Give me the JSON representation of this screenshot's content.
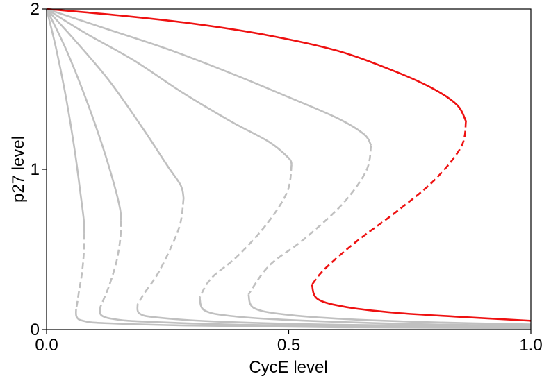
{
  "chart_data": {
    "type": "line",
    "title": "",
    "xlabel": "CycE level",
    "ylabel": "p27 level",
    "xlim": [
      0,
      1
    ],
    "ylim": [
      0,
      2
    ],
    "xticks": [
      {
        "value": 0,
        "label": "0.0"
      },
      {
        "value": 0.5,
        "label": "0.5"
      },
      {
        "value": 1,
        "label": "1.0"
      }
    ],
    "yticks": [
      {
        "value": 0,
        "label": "0"
      },
      {
        "value": 1,
        "label": "1"
      },
      {
        "value": 2,
        "label": "2"
      }
    ],
    "grid": false,
    "legend": "none",
    "colors": {
      "gray": "#c0c0c0",
      "red": "#ee1111"
    },
    "series": [
      {
        "color": "gray",
        "segments": [
          {
            "style": "solid",
            "points": [
              [
                0.0,
                2.0
              ],
              [
                0.02,
                1.75
              ],
              [
                0.04,
                1.45
              ],
              [
                0.058,
                1.12
              ],
              [
                0.07,
                0.85
              ],
              [
                0.077,
                0.68
              ],
              [
                0.078,
                0.6
              ]
            ]
          },
          {
            "style": "dashed",
            "points": [
              [
                0.078,
                0.6
              ],
              [
                0.077,
                0.48
              ],
              [
                0.073,
                0.35
              ],
              [
                0.067,
                0.24
              ],
              [
                0.063,
                0.16
              ],
              [
                0.061,
                0.13
              ]
            ]
          },
          {
            "style": "solid",
            "points": [
              [
                0.061,
                0.13
              ],
              [
                0.062,
                0.08
              ],
              [
                0.075,
                0.055
              ],
              [
                0.12,
                0.04
              ],
              [
                0.3,
                0.025
              ],
              [
                0.6,
                0.014
              ],
              [
                1.0,
                0.009
              ]
            ]
          }
        ]
      },
      {
        "color": "gray",
        "segments": [
          {
            "style": "solid",
            "points": [
              [
                0.0,
                2.0
              ],
              [
                0.04,
                1.75
              ],
              [
                0.08,
                1.45
              ],
              [
                0.115,
                1.15
              ],
              [
                0.14,
                0.9
              ],
              [
                0.152,
                0.75
              ],
              [
                0.154,
                0.68
              ]
            ]
          },
          {
            "style": "dashed",
            "points": [
              [
                0.154,
                0.68
              ],
              [
                0.152,
                0.56
              ],
              [
                0.144,
                0.42
              ],
              [
                0.13,
                0.28
              ],
              [
                0.118,
                0.19
              ],
              [
                0.111,
                0.14
              ]
            ]
          },
          {
            "style": "solid",
            "points": [
              [
                0.111,
                0.14
              ],
              [
                0.113,
                0.09
              ],
              [
                0.14,
                0.065
              ],
              [
                0.2,
                0.05
              ],
              [
                0.4,
                0.03
              ],
              [
                0.7,
                0.02
              ],
              [
                1.0,
                0.014
              ]
            ]
          }
        ]
      },
      {
        "color": "gray",
        "segments": [
          {
            "style": "solid",
            "points": [
              [
                0.0,
                2.0
              ],
              [
                0.06,
                1.8
              ],
              [
                0.13,
                1.55
              ],
              [
                0.2,
                1.25
              ],
              [
                0.25,
                1.02
              ],
              [
                0.277,
                0.9
              ],
              [
                0.283,
                0.82
              ]
            ]
          },
          {
            "style": "dashed",
            "points": [
              [
                0.283,
                0.82
              ],
              [
                0.276,
                0.66
              ],
              [
                0.255,
                0.5
              ],
              [
                0.228,
                0.34
              ],
              [
                0.205,
                0.24
              ],
              [
                0.188,
                0.16
              ]
            ]
          },
          {
            "style": "solid",
            "points": [
              [
                0.188,
                0.16
              ],
              [
                0.192,
                0.1
              ],
              [
                0.23,
                0.075
              ],
              [
                0.35,
                0.05
              ],
              [
                0.6,
                0.03
              ],
              [
                1.0,
                0.02
              ]
            ]
          }
        ]
      },
      {
        "color": "gray",
        "segments": [
          {
            "style": "solid",
            "points": [
              [
                0.0,
                2.0
              ],
              [
                0.08,
                1.85
              ],
              [
                0.18,
                1.68
              ],
              [
                0.28,
                1.48
              ],
              [
                0.38,
                1.3
              ],
              [
                0.46,
                1.17
              ],
              [
                0.5,
                1.07
              ],
              [
                0.506,
                1.03
              ]
            ]
          },
          {
            "style": "dashed",
            "points": [
              [
                0.506,
                1.03
              ],
              [
                0.497,
                0.86
              ],
              [
                0.455,
                0.66
              ],
              [
                0.395,
                0.46
              ],
              [
                0.34,
                0.32
              ],
              [
                0.316,
                0.2
              ]
            ]
          },
          {
            "style": "solid",
            "points": [
              [
                0.316,
                0.2
              ],
              [
                0.326,
                0.12
              ],
              [
                0.38,
                0.085
              ],
              [
                0.5,
                0.06
              ],
              [
                0.75,
                0.035
              ],
              [
                1.0,
                0.025
              ]
            ]
          }
        ]
      },
      {
        "color": "gray",
        "segments": [
          {
            "style": "solid",
            "points": [
              [
                0.0,
                2.0
              ],
              [
                0.12,
                1.88
              ],
              [
                0.25,
                1.75
              ],
              [
                0.38,
                1.6
              ],
              [
                0.5,
                1.45
              ],
              [
                0.6,
                1.32
              ],
              [
                0.655,
                1.22
              ],
              [
                0.67,
                1.15
              ]
            ]
          },
          {
            "style": "dashed",
            "points": [
              [
                0.67,
                1.15
              ],
              [
                0.66,
                0.99
              ],
              [
                0.61,
                0.78
              ],
              [
                0.53,
                0.56
              ],
              [
                0.46,
                0.4
              ],
              [
                0.417,
                0.22
              ]
            ]
          },
          {
            "style": "solid",
            "points": [
              [
                0.417,
                0.22
              ],
              [
                0.428,
                0.135
              ],
              [
                0.49,
                0.095
              ],
              [
                0.62,
                0.065
              ],
              [
                0.8,
                0.045
              ],
              [
                1.0,
                0.032
              ]
            ]
          }
        ]
      },
      {
        "color": "red",
        "segments": [
          {
            "style": "solid",
            "points": [
              [
                0.0,
                2.0
              ],
              [
                0.15,
                1.96
              ],
              [
                0.3,
                1.91
              ],
              [
                0.45,
                1.84
              ],
              [
                0.6,
                1.74
              ],
              [
                0.72,
                1.61
              ],
              [
                0.8,
                1.5
              ],
              [
                0.848,
                1.4
              ],
              [
                0.866,
                1.3
              ]
            ]
          },
          {
            "style": "dashed",
            "points": [
              [
                0.866,
                1.3
              ],
              [
                0.856,
                1.14
              ],
              [
                0.8,
                0.93
              ],
              [
                0.72,
                0.73
              ],
              [
                0.64,
                0.55
              ],
              [
                0.575,
                0.38
              ],
              [
                0.548,
                0.28
              ]
            ]
          },
          {
            "style": "solid",
            "points": [
              [
                0.548,
                0.28
              ],
              [
                0.56,
                0.19
              ],
              [
                0.62,
                0.14
              ],
              [
                0.72,
                0.105
              ],
              [
                0.85,
                0.08
              ],
              [
                1.0,
                0.055
              ]
            ]
          }
        ]
      }
    ]
  }
}
